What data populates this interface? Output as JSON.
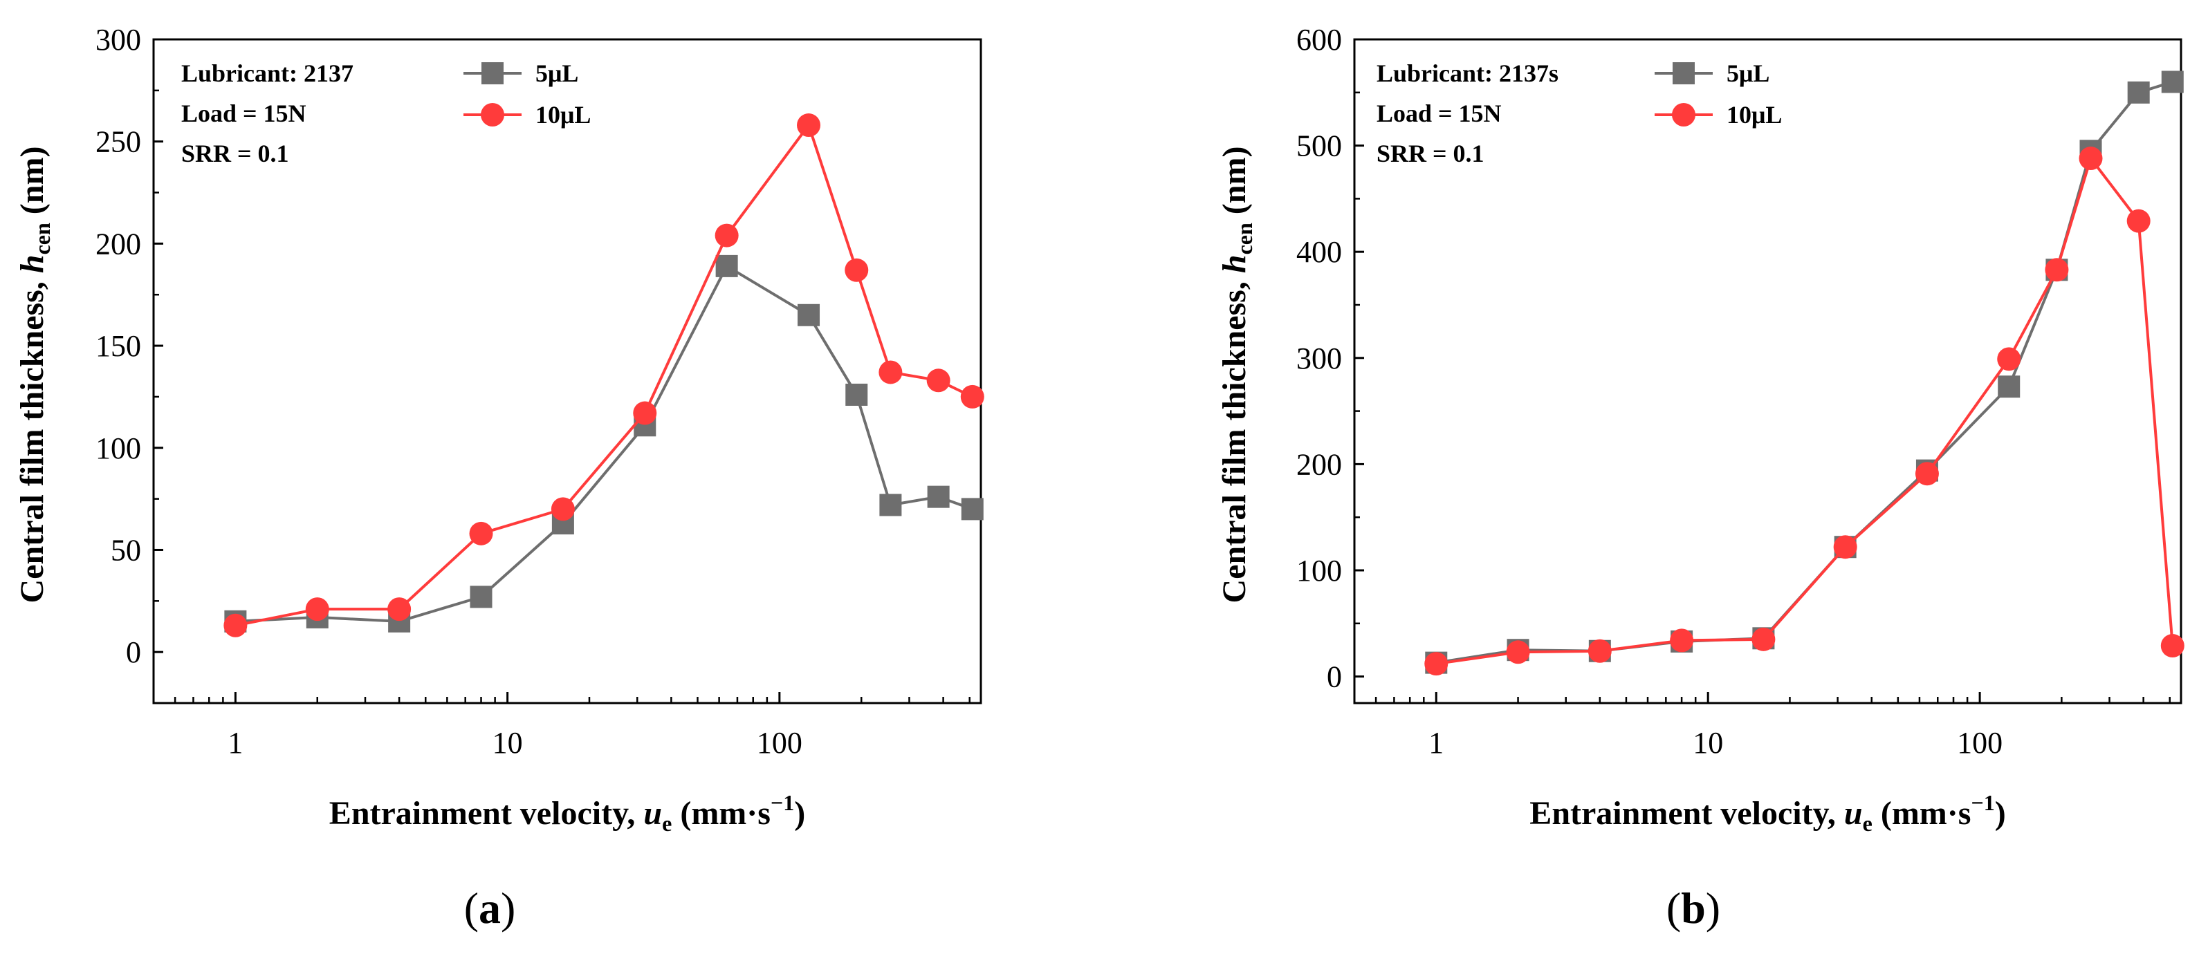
{
  "chart_data": [
    {
      "type": "line",
      "panel_label": "(a)",
      "xscale": "log",
      "x_ticks": [
        1,
        10,
        100
      ],
      "x_tick_labels": [
        "1",
        "10",
        "100"
      ],
      "xlim": [
        0.5,
        550
      ],
      "ylim": [
        -25,
        300
      ],
      "y_ticks": [
        0,
        50,
        100,
        150,
        200,
        250,
        300
      ],
      "y_tick_labels": [
        "0",
        "50",
        "100",
        "150",
        "200",
        "250",
        "300"
      ],
      "xlabel": {
        "main": "Entrainment velocity, ",
        "var": "u",
        "sub": "e",
        "unit": " (mm·s",
        "sup": "−1",
        "close": ")"
      },
      "ylabel": {
        "main": "Central film thickness, ",
        "var": "h",
        "sub": "cen",
        "unit": " (nm)"
      },
      "annotations": [
        "Lubricant: 2137",
        "Load = 15N",
        "SRR = 0.1"
      ],
      "x": [
        1,
        2,
        4,
        8,
        16,
        32,
        64,
        128,
        192,
        256,
        384,
        512
      ],
      "series": [
        {
          "name": "5μL",
          "marker": "square",
          "color": "#6e6e6e",
          "values": [
            15,
            17,
            15,
            27,
            63,
            111,
            189,
            165,
            126,
            72,
            76,
            70
          ]
        },
        {
          "name": "10μL",
          "marker": "circle",
          "color": "#ff3b3b",
          "values": [
            13,
            21,
            21,
            58,
            70,
            117,
            204,
            258,
            187,
            137,
            133,
            125
          ]
        }
      ]
    },
    {
      "type": "line",
      "panel_label": "(b)",
      "xscale": "log",
      "x_ticks": [
        1,
        10,
        100
      ],
      "x_tick_labels": [
        "1",
        "10",
        "100"
      ],
      "xlim": [
        0.5,
        550
      ],
      "ylim": [
        -25,
        600
      ],
      "y_ticks": [
        0,
        100,
        200,
        300,
        400,
        500,
        600
      ],
      "y_tick_labels": [
        "0",
        "100",
        "200",
        "300",
        "400",
        "500",
        "600"
      ],
      "xlabel": {
        "main": "Entrainment velocity, ",
        "var": "u",
        "sub": "e",
        "unit": " (mm·s",
        "sup": "−1",
        "close": ")"
      },
      "ylabel": {
        "main": "Central film thickness, ",
        "var": "h",
        "sub": "cen",
        "unit": " (nm)"
      },
      "annotations": [
        "Lubricant: 2137s",
        "Load = 15N",
        "SRR = 0.1"
      ],
      "x": [
        1,
        2,
        4,
        8,
        16,
        32,
        64,
        128,
        192,
        256,
        384,
        512
      ],
      "series": [
        {
          "name": "5μL",
          "marker": "square",
          "color": "#6e6e6e",
          "values": [
            13,
            25,
            24,
            33,
            36,
            122,
            194,
            273,
            383,
            495,
            550,
            560
          ]
        },
        {
          "name": "10μL",
          "marker": "circle",
          "color": "#ff3b3b",
          "values": [
            12,
            23,
            24,
            34,
            35,
            122,
            191,
            299,
            383,
            488,
            429,
            29
          ]
        }
      ]
    }
  ]
}
